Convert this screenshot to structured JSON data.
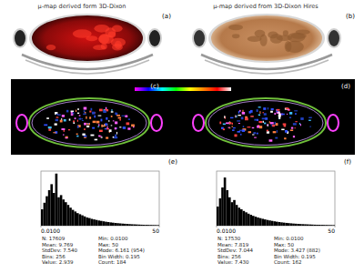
{
  "figure": {
    "captions": [
      "μ-map derived form 3D-Dixon",
      "μ-map derived from 3D-Dixon Hires"
    ],
    "panel_labels": [
      "(a)",
      "(b)",
      "(c)",
      "(d)"
    ]
  },
  "chart_data": [
    {
      "type": "histogram",
      "title": "(e)",
      "color": "#000000",
      "bins": [
        0.01,
        1.01,
        2.01,
        3.01,
        4.01,
        5.01,
        6.01,
        7.01,
        8.01,
        9.01,
        10.01,
        11.01,
        12.01,
        13.01,
        14.01,
        15.01,
        16.01,
        17.01,
        18.01,
        19.01,
        20.01,
        21.01,
        22.01,
        23.01,
        24.01,
        25.01,
        26.01,
        27.01,
        28.01,
        29.01,
        30.01,
        31.01,
        32.01,
        33.01,
        34.01,
        35.01,
        36.01,
        37.01,
        38.01,
        39.01,
        40.01,
        41.01,
        42.01,
        43.01,
        44.01,
        45.01,
        46.01,
        47.01,
        48.01,
        49.01,
        50
      ],
      "values": [
        300,
        420,
        540,
        650,
        760,
        600,
        954,
        520,
        560,
        480,
        430,
        380,
        330,
        290,
        260,
        230,
        210,
        190,
        170,
        150,
        140,
        125,
        115,
        105,
        95,
        88,
        80,
        72,
        66,
        60,
        55,
        50,
        46,
        42,
        38,
        35,
        32,
        29,
        26,
        24,
        22,
        20,
        18,
        16,
        15,
        14,
        13,
        12,
        11,
        10
      ],
      "xlim": [
        0.01,
        50
      ],
      "xticks": [
        {
          "value": 0.01,
          "label": "0.0100"
        },
        50
      ],
      "ylim": [
        0,
        1000
      ],
      "tick_labels": "x",
      "annotations": [
        "N: 17609",
        "Mean: 9.769",
        "StdDev: 7.540",
        "Bins: 256",
        "Value: 2.939",
        "Min: 0.0100",
        "Max: 50",
        "Mode: 6.161 (954)",
        "Bin Width: 0.195",
        "Count: 184"
      ]
    },
    {
      "type": "histogram",
      "title": "(f)",
      "color": "#000000",
      "bins": [
        0.01,
        1.01,
        2.01,
        3.01,
        4.01,
        5.01,
        6.01,
        7.01,
        8.01,
        9.01,
        10.01,
        11.01,
        12.01,
        13.01,
        14.01,
        15.01,
        16.01,
        17.01,
        18.01,
        19.01,
        20.01,
        21.01,
        22.01,
        23.01,
        24.01,
        25.01,
        26.01,
        27.01,
        28.01,
        29.01,
        30.01,
        31.01,
        32.01,
        33.01,
        34.01,
        35.01,
        36.01,
        37.01,
        38.01,
        39.01,
        40.01,
        41.01,
        42.01,
        43.01,
        44.01,
        45.01,
        46.01,
        47.01,
        48.01,
        49.01,
        50
      ],
      "values": [
        350,
        500,
        700,
        882,
        650,
        520,
        430,
        470,
        380,
        330,
        300,
        270,
        245,
        220,
        200,
        180,
        165,
        150,
        138,
        126,
        115,
        105,
        96,
        88,
        80,
        73,
        67,
        61,
        56,
        51,
        47,
        43,
        39,
        36,
        33,
        30,
        28,
        26,
        24,
        22,
        20,
        18,
        17,
        16,
        15,
        14,
        13,
        12,
        11,
        10
      ],
      "xlim": [
        0.01,
        50
      ],
      "xticks": [
        {
          "value": 0.01,
          "label": "0.0100"
        },
        50
      ],
      "ylim": [
        0,
        1000
      ],
      "tick_labels": "x",
      "annotations": [
        "N: 17530",
        "Mean: 7.819",
        "StdDev: 7.044",
        "Bins: 256",
        "Value: 7.430",
        "Min: 0.0100",
        "Max: 50",
        "Mode: 3.427 (882)",
        "Bin Width: 0.195",
        "Count: 162"
      ]
    }
  ]
}
